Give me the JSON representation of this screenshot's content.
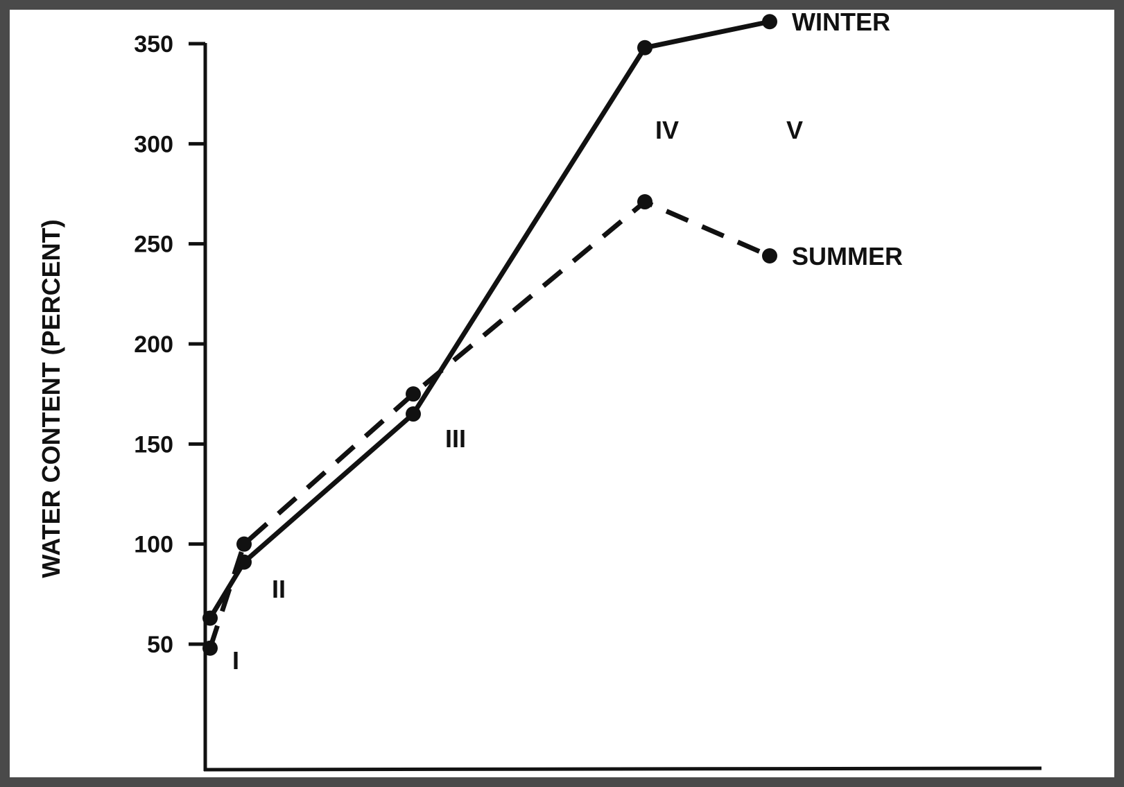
{
  "chart_data": {
    "type": "line",
    "ylabel": "WATER CONTENT (PERCENT)",
    "xlabel": "",
    "ylim": [
      0,
      360
    ],
    "yticks": [
      50,
      100,
      150,
      200,
      250,
      300,
      350
    ],
    "y_tick_labels": [
      "50",
      "100",
      "150",
      "200",
      "250",
      "300",
      "350"
    ],
    "grid": false,
    "stages": [
      "I",
      "II",
      "III",
      "IV",
      "V"
    ],
    "series": [
      {
        "name": "WINTER",
        "style": "solid",
        "color": "#111111",
        "points": [
          {
            "x": 0.0,
            "y": 63
          },
          {
            "x": 1.0,
            "y": 91
          },
          {
            "x": 2.0,
            "y": 165
          },
          {
            "x": 3.0,
            "y": 348
          },
          {
            "x": 4.0,
            "y": 361
          }
        ]
      },
      {
        "name": "SUMMER",
        "style": "dashed",
        "color": "#111111",
        "points": [
          {
            "x": 0.0,
            "y": 48
          },
          {
            "x": 1.0,
            "y": 100
          },
          {
            "x": 2.0,
            "y": 175
          },
          {
            "x": 3.0,
            "y": 271
          },
          {
            "x": 4.0,
            "y": 244
          }
        ]
      }
    ],
    "colors": {
      "frame": "#4a4a4a",
      "ink": "#111111",
      "background": "#ffffff"
    }
  }
}
